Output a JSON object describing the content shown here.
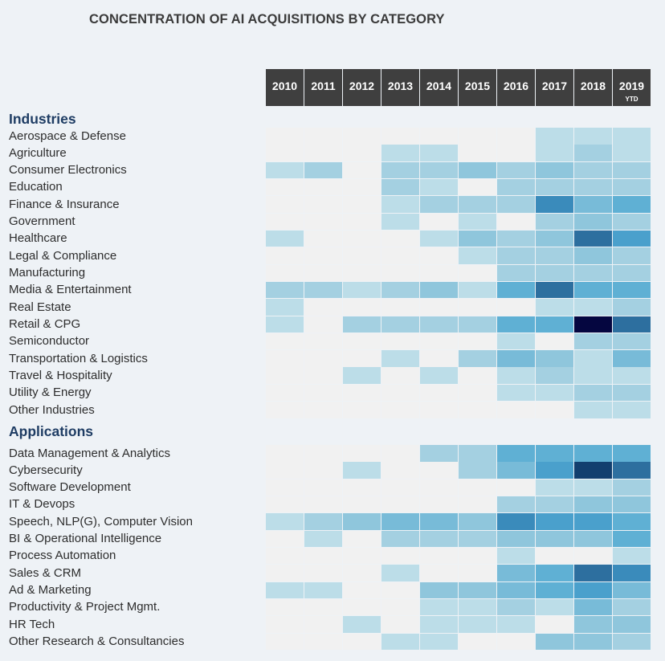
{
  "title": "CONCENTRATION OF AI ACQUISITIONS BY CATEGORY",
  "chart_data": {
    "type": "heatmap",
    "title": "CONCENTRATION OF AI ACQUISITIONS BY CATEGORY",
    "scale": "relative concentration 0-10 (0 = none, 10 = highest)",
    "colors": [
      "#f1f1f1",
      "#bcdde8",
      "#a4d0e1",
      "#8fc6dc",
      "#78bbd8",
      "#5fb0d4",
      "#4aa0cc",
      "#3a8bbb",
      "#2d6f9f",
      "#123f6f",
      "#050640"
    ],
    "columns": [
      {
        "label": "2010",
        "sub": ""
      },
      {
        "label": "2011",
        "sub": ""
      },
      {
        "label": "2012",
        "sub": ""
      },
      {
        "label": "2013",
        "sub": ""
      },
      {
        "label": "2014",
        "sub": ""
      },
      {
        "label": "2015",
        "sub": ""
      },
      {
        "label": "2016",
        "sub": ""
      },
      {
        "label": "2017",
        "sub": ""
      },
      {
        "label": "2018",
        "sub": ""
      },
      {
        "label": "2019",
        "sub": "YTD"
      }
    ],
    "sections": [
      {
        "name": "Industries",
        "rows": [
          {
            "label": "Aerospace & Defense",
            "values": [
              0,
              0,
              0,
              0,
              0,
              0,
              0,
              1,
              1,
              1
            ]
          },
          {
            "label": "Agriculture",
            "values": [
              0,
              0,
              0,
              1,
              1,
              0,
              0,
              1,
              2,
              1
            ]
          },
          {
            "label": "Consumer Electronics",
            "values": [
              1,
              2,
              0,
              2,
              2,
              3,
              2,
              3,
              2,
              2
            ]
          },
          {
            "label": "Education",
            "values": [
              0,
              0,
              0,
              2,
              1,
              0,
              2,
              2,
              2,
              2
            ]
          },
          {
            "label": "Finance & Insurance",
            "values": [
              0,
              0,
              0,
              1,
              2,
              2,
              2,
              7,
              4,
              5
            ]
          },
          {
            "label": "Government",
            "values": [
              0,
              0,
              0,
              1,
              0,
              1,
              0,
              2,
              3,
              2
            ]
          },
          {
            "label": "Healthcare",
            "values": [
              1,
              0,
              0,
              0,
              1,
              3,
              2,
              3,
              8,
              6
            ]
          },
          {
            "label": "Legal & Compliance",
            "values": [
              0,
              0,
              0,
              0,
              0,
              1,
              2,
              2,
              3,
              2
            ]
          },
          {
            "label": "Manufacturing",
            "values": [
              0,
              0,
              0,
              0,
              0,
              0,
              2,
              2,
              2,
              2
            ]
          },
          {
            "label": "Media & Entertainment",
            "values": [
              2,
              2,
              1,
              2,
              3,
              1,
              5,
              8,
              5,
              5
            ]
          },
          {
            "label": "Real Estate",
            "values": [
              1,
              0,
              0,
              0,
              0,
              0,
              0,
              1,
              1,
              2
            ]
          },
          {
            "label": "Retail & CPG",
            "values": [
              1,
              0,
              2,
              2,
              2,
              2,
              5,
              5,
              10,
              8
            ]
          },
          {
            "label": "Semiconductor",
            "values": [
              0,
              0,
              0,
              0,
              0,
              0,
              1,
              0,
              2,
              2
            ]
          },
          {
            "label": "Transportation & Logistics",
            "values": [
              0,
              0,
              0,
              1,
              0,
              2,
              4,
              3,
              1,
              4
            ]
          },
          {
            "label": "Travel & Hospitality",
            "values": [
              0,
              0,
              1,
              0,
              1,
              0,
              1,
              2,
              1,
              1
            ]
          },
          {
            "label": "Utility & Energy",
            "values": [
              0,
              0,
              0,
              0,
              0,
              0,
              1,
              1,
              2,
              2
            ]
          },
          {
            "label": "Other Industries",
            "values": [
              0,
              0,
              0,
              0,
              0,
              0,
              0,
              0,
              1,
              1
            ]
          }
        ]
      },
      {
        "name": "Applications",
        "rows": [
          {
            "label": "Data Management & Analytics",
            "values": [
              0,
              0,
              0,
              0,
              2,
              2,
              5,
              5,
              5,
              5
            ]
          },
          {
            "label": "Cybersecurity",
            "values": [
              0,
              0,
              1,
              0,
              0,
              2,
              4,
              6,
              9,
              8
            ]
          },
          {
            "label": "Software Development",
            "values": [
              0,
              0,
              0,
              0,
              0,
              0,
              0,
              1,
              1,
              2
            ]
          },
          {
            "label": "IT & Devops",
            "values": [
              0,
              0,
              0,
              0,
              0,
              0,
              2,
              2,
              3,
              3
            ]
          },
          {
            "label": "Speech, NLP(G), Computer Vision",
            "values": [
              1,
              2,
              3,
              4,
              4,
              3,
              7,
              6,
              6,
              5
            ]
          },
          {
            "label": "BI & Operational Intelligence",
            "values": [
              0,
              1,
              0,
              2,
              2,
              2,
              3,
              3,
              3,
              5
            ]
          },
          {
            "label": "Process Automation",
            "values": [
              0,
              0,
              0,
              0,
              0,
              0,
              1,
              0,
              0,
              1
            ]
          },
          {
            "label": "Sales & CRM",
            "values": [
              0,
              0,
              0,
              1,
              0,
              0,
              4,
              5,
              8,
              7
            ]
          },
          {
            "label": "Ad & Marketing",
            "values": [
              1,
              1,
              0,
              0,
              3,
              3,
              4,
              5,
              6,
              4
            ]
          },
          {
            "label": "Productivity & Project Mgmt.",
            "values": [
              0,
              0,
              0,
              0,
              1,
              1,
              2,
              1,
              4,
              2
            ]
          },
          {
            "label": "HR Tech",
            "values": [
              0,
              0,
              1,
              0,
              1,
              1,
              1,
              0,
              3,
              3
            ]
          },
          {
            "label": "Other Research & Consultancies",
            "values": [
              0,
              0,
              0,
              1,
              1,
              0,
              0,
              3,
              3,
              2
            ]
          }
        ]
      }
    ]
  }
}
